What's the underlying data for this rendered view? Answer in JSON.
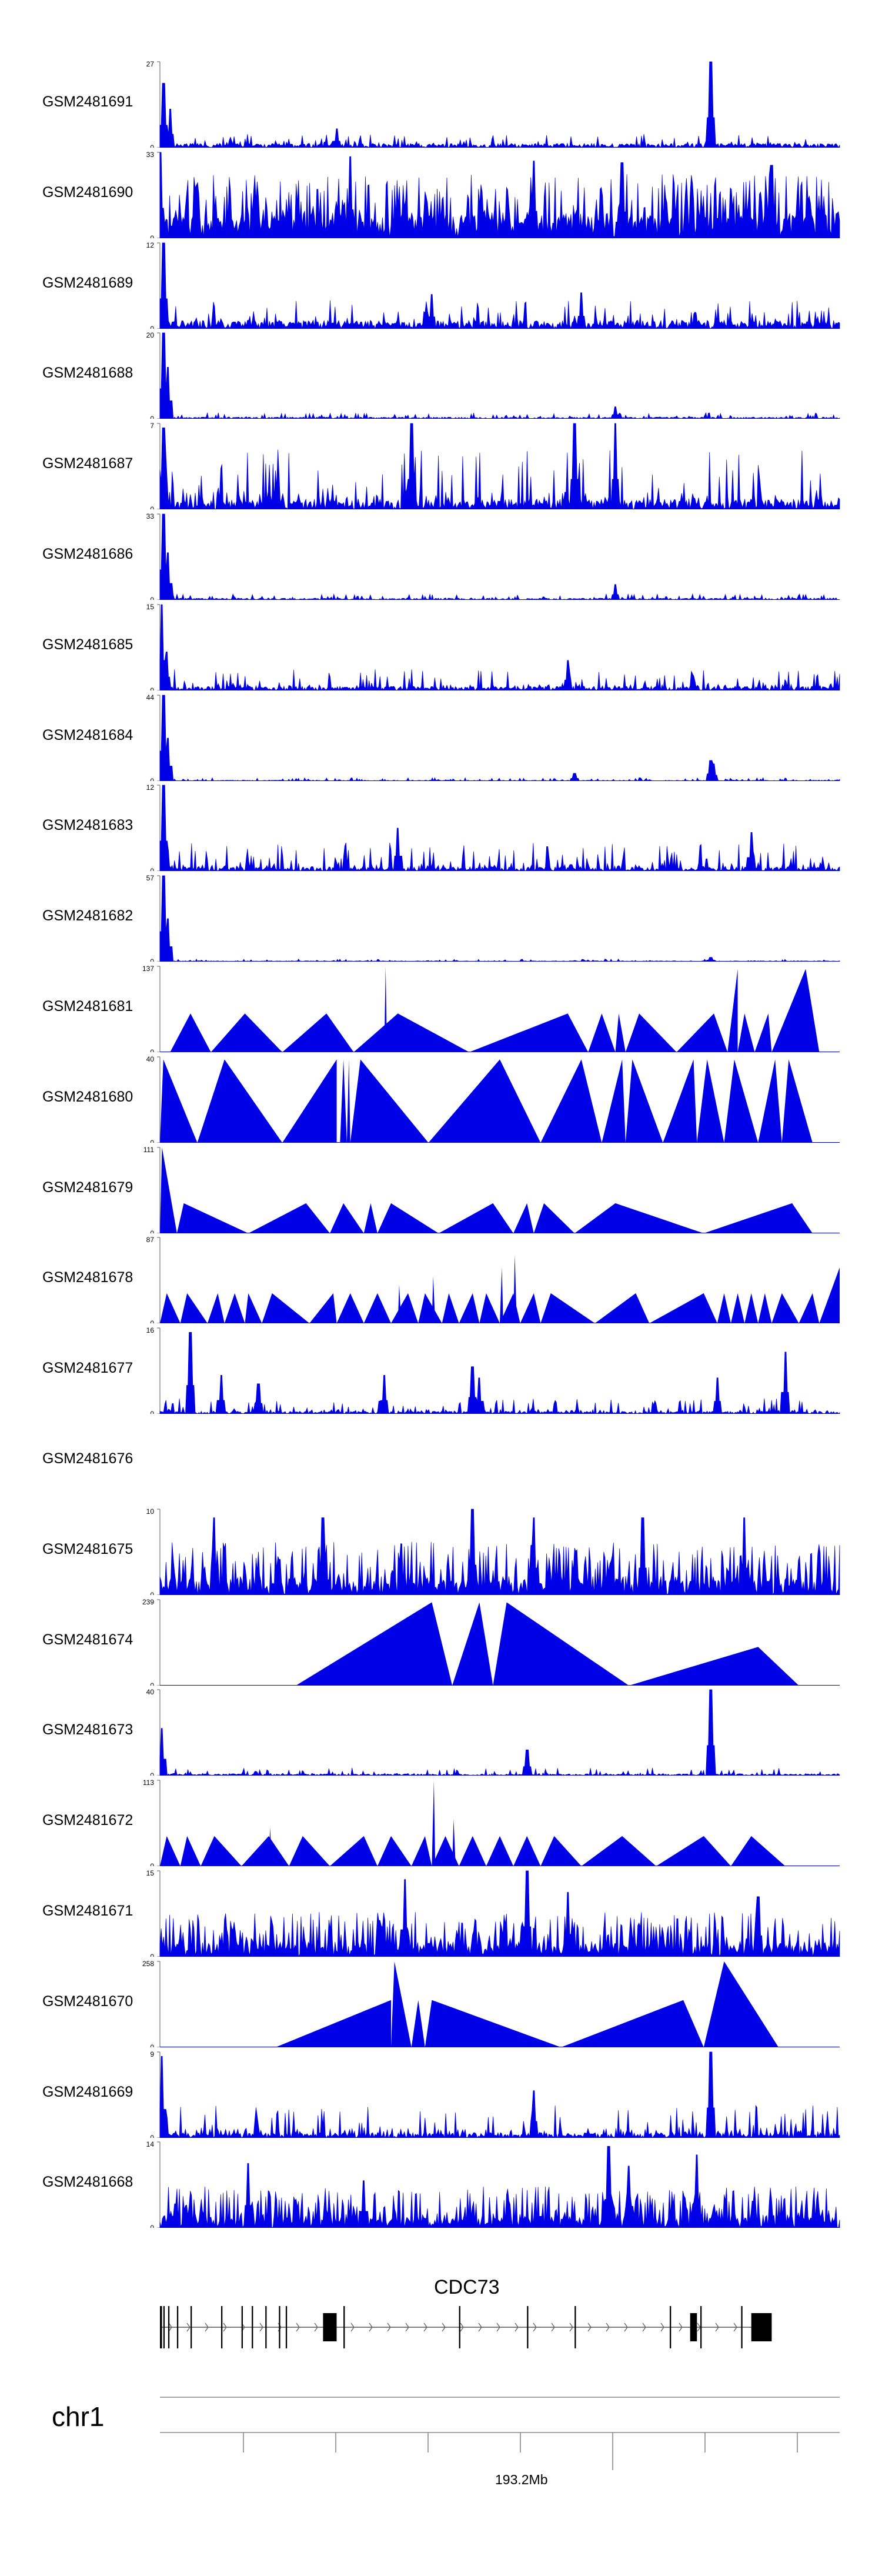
{
  "chart_data": {
    "type": "area",
    "title": "",
    "color": "#0000e6",
    "tracks": [
      {
        "name": "GSM2481691",
        "max": "27",
        "min": "0",
        "ymax": 27,
        "style": "dense",
        "base": 0.05,
        "noise": 0.16,
        "peaks": [
          [
            0.005,
            0.75
          ],
          [
            0.015,
            0.45
          ],
          [
            0.81,
            1.0
          ],
          [
            0.26,
            0.22
          ]
        ]
      },
      {
        "name": "GSM2481690",
        "max": "33",
        "min": "0",
        "ymax": 33,
        "style": "spiky",
        "base": 0.3,
        "noise": 0.75,
        "peaks": [
          [
            0.0,
            1.0
          ],
          [
            0.28,
            0.95
          ],
          [
            0.55,
            0.9
          ],
          [
            0.68,
            0.88
          ],
          [
            0.9,
            0.85
          ]
        ]
      },
      {
        "name": "GSM2481689",
        "max": "12",
        "min": "0",
        "ymax": 12,
        "style": "dense",
        "base": 0.1,
        "noise": 0.33,
        "peaks": [
          [
            0.005,
            1.0
          ],
          [
            0.62,
            0.42
          ],
          [
            0.4,
            0.4
          ]
        ]
      },
      {
        "name": "GSM2481688",
        "max": "20",
        "min": "0",
        "ymax": 20,
        "style": "dense",
        "base": 0.02,
        "noise": 0.07,
        "peaks": [
          [
            0.005,
            1.0
          ],
          [
            0.012,
            0.6
          ],
          [
            0.67,
            0.14
          ]
        ]
      },
      {
        "name": "GSM2481687",
        "max": "7",
        "min": "0",
        "ymax": 7,
        "style": "dense",
        "base": 0.12,
        "noise": 0.7,
        "peaks": [
          [
            0.005,
            0.95
          ],
          [
            0.37,
            1.0
          ],
          [
            0.61,
            1.0
          ],
          [
            0.67,
            1.0
          ]
        ]
      },
      {
        "name": "GSM2481686",
        "max": "33",
        "min": "0",
        "ymax": 33,
        "style": "dense",
        "base": 0.02,
        "noise": 0.07,
        "peaks": [
          [
            0.005,
            1.0
          ],
          [
            0.012,
            0.55
          ],
          [
            0.67,
            0.18
          ]
        ]
      },
      {
        "name": "GSM2481685",
        "max": "15",
        "min": "0",
        "ymax": 15,
        "style": "dense",
        "base": 0.05,
        "noise": 0.25,
        "peaks": [
          [
            0.003,
            1.0
          ],
          [
            0.01,
            0.45
          ],
          [
            0.6,
            0.35
          ]
        ]
      },
      {
        "name": "GSM2481684",
        "max": "44",
        "min": "0",
        "ymax": 44,
        "style": "dense",
        "base": 0.01,
        "noise": 0.04,
        "peaks": [
          [
            0.005,
            1.0
          ],
          [
            0.012,
            0.5
          ],
          [
            0.61,
            0.09
          ],
          [
            0.81,
            0.24
          ],
          [
            0.815,
            0.2
          ]
        ]
      },
      {
        "name": "GSM2481683",
        "max": "12",
        "min": "0",
        "ymax": 12,
        "style": "dense",
        "base": 0.05,
        "noise": 0.33,
        "peaks": [
          [
            0.005,
            1.0
          ],
          [
            0.35,
            0.5
          ],
          [
            0.87,
            0.45
          ]
        ]
      },
      {
        "name": "GSM2481682",
        "max": "57",
        "min": "0",
        "ymax": 57,
        "style": "dense",
        "base": 0.01,
        "noise": 0.03,
        "peaks": [
          [
            0.005,
            1.0
          ],
          [
            0.012,
            0.5
          ],
          [
            0.81,
            0.05
          ]
        ]
      },
      {
        "name": "GSM2481681",
        "max": "137",
        "min": "0",
        "ymax": 137,
        "style": "tri",
        "tris": [
          [
            0.015,
            0.075,
            0.045,
            0.45
          ],
          [
            0.075,
            0.18,
            0.125,
            0.45
          ],
          [
            0.18,
            0.285,
            0.245,
            0.45
          ],
          [
            0.285,
            0.455,
            0.35,
            0.45
          ],
          [
            0.455,
            0.63,
            0.6,
            0.45
          ],
          [
            0.63,
            0.67,
            0.65,
            0.45
          ],
          [
            0.67,
            0.685,
            0.675,
            0.45
          ],
          [
            0.685,
            0.76,
            0.705,
            0.45
          ],
          [
            0.76,
            0.835,
            0.815,
            0.45
          ],
          [
            0.835,
            0.85,
            0.85,
            0.97
          ],
          [
            0.85,
            0.875,
            0.86,
            0.45
          ],
          [
            0.875,
            0.9,
            0.895,
            0.45
          ],
          [
            0.9,
            0.97,
            0.95,
            0.97
          ],
          [
            0.33,
            0.334,
            0.332,
            1.0
          ]
        ]
      },
      {
        "name": "GSM2481680",
        "max": "40",
        "min": "0",
        "ymax": 40,
        "style": "tri",
        "tris": [
          [
            0.0,
            0.055,
            0.005,
            0.97
          ],
          [
            0.055,
            0.18,
            0.095,
            0.97
          ],
          [
            0.18,
            0.26,
            0.26,
            0.97
          ],
          [
            0.265,
            0.275,
            0.27,
            0.97
          ],
          [
            0.275,
            0.28,
            0.278,
            0.97
          ],
          [
            0.28,
            0.395,
            0.295,
            0.97
          ],
          [
            0.395,
            0.56,
            0.5,
            0.97
          ],
          [
            0.56,
            0.65,
            0.62,
            0.97
          ],
          [
            0.65,
            0.685,
            0.68,
            0.97
          ],
          [
            0.685,
            0.74,
            0.695,
            0.97
          ],
          [
            0.74,
            0.79,
            0.785,
            0.97
          ],
          [
            0.79,
            0.83,
            0.805,
            0.97
          ],
          [
            0.83,
            0.88,
            0.845,
            0.97
          ],
          [
            0.88,
            0.915,
            0.905,
            0.97
          ],
          [
            0.915,
            0.96,
            0.925,
            0.97
          ]
        ]
      },
      {
        "name": "GSM2481679",
        "max": "111",
        "min": "0",
        "ymax": 111,
        "style": "tri",
        "tris": [
          [
            0.0,
            0.025,
            0.003,
            1.0
          ],
          [
            0.025,
            0.13,
            0.035,
            0.35
          ],
          [
            0.13,
            0.25,
            0.215,
            0.35
          ],
          [
            0.25,
            0.3,
            0.27,
            0.35
          ],
          [
            0.3,
            0.32,
            0.31,
            0.35
          ],
          [
            0.32,
            0.41,
            0.34,
            0.35
          ],
          [
            0.41,
            0.52,
            0.49,
            0.35
          ],
          [
            0.52,
            0.55,
            0.54,
            0.35
          ],
          [
            0.55,
            0.61,
            0.565,
            0.35
          ],
          [
            0.61,
            0.8,
            0.67,
            0.35
          ],
          [
            0.8,
            0.96,
            0.93,
            0.35
          ]
        ]
      },
      {
        "name": "GSM2481678",
        "max": "87",
        "min": "0",
        "ymax": 87,
        "style": "tri",
        "tris": [
          [
            0.0,
            0.03,
            0.01,
            0.35
          ],
          [
            0.03,
            0.07,
            0.04,
            0.35
          ],
          [
            0.07,
            0.095,
            0.085,
            0.35
          ],
          [
            0.095,
            0.125,
            0.11,
            0.35
          ],
          [
            0.125,
            0.15,
            0.13,
            0.35
          ],
          [
            0.15,
            0.22,
            0.165,
            0.35
          ],
          [
            0.22,
            0.26,
            0.255,
            0.35
          ],
          [
            0.26,
            0.3,
            0.28,
            0.35
          ],
          [
            0.3,
            0.34,
            0.32,
            0.35
          ],
          [
            0.34,
            0.38,
            0.365,
            0.35
          ],
          [
            0.38,
            0.415,
            0.39,
            0.35
          ],
          [
            0.415,
            0.44,
            0.425,
            0.35
          ],
          [
            0.44,
            0.47,
            0.46,
            0.35
          ],
          [
            0.47,
            0.5,
            0.48,
            0.35
          ],
          [
            0.5,
            0.53,
            0.52,
            0.35
          ],
          [
            0.53,
            0.56,
            0.55,
            0.35
          ],
          [
            0.56,
            0.64,
            0.575,
            0.35
          ],
          [
            0.64,
            0.72,
            0.7,
            0.35
          ],
          [
            0.72,
            0.82,
            0.8,
            0.35
          ],
          [
            0.82,
            0.84,
            0.83,
            0.35
          ],
          [
            0.84,
            0.86,
            0.85,
            0.35
          ],
          [
            0.86,
            0.88,
            0.87,
            0.35
          ],
          [
            0.88,
            0.9,
            0.89,
            0.35
          ],
          [
            0.9,
            0.94,
            0.915,
            0.35
          ],
          [
            0.94,
            0.97,
            0.96,
            0.35
          ],
          [
            0.97,
            1.0,
            1.0,
            0.65
          ],
          [
            0.35,
            0.355,
            0.352,
            0.45
          ],
          [
            0.4,
            0.405,
            0.402,
            0.55
          ],
          [
            0.5,
            0.505,
            0.503,
            0.65
          ],
          [
            0.52,
            0.525,
            0.522,
            0.8
          ]
        ]
      },
      {
        "name": "GSM2481677",
        "max": "16",
        "min": "0",
        "ymax": 16,
        "style": "dense",
        "base": 0.03,
        "noise": 0.18,
        "peaks": [
          [
            0.045,
            0.95
          ],
          [
            0.09,
            0.45
          ],
          [
            0.145,
            0.35
          ],
          [
            0.33,
            0.45
          ],
          [
            0.46,
            0.55
          ],
          [
            0.47,
            0.42
          ],
          [
            0.82,
            0.42
          ],
          [
            0.92,
            0.72
          ]
        ]
      },
      {
        "name": "GSM2481676",
        "max": "",
        "min": "",
        "ymax": 0,
        "style": "empty"
      },
      {
        "name": "GSM2481675",
        "max": "10",
        "min": "0",
        "ymax": 10,
        "style": "spiky",
        "base": 0.18,
        "noise": 0.62,
        "peaks": [
          [
            0.08,
            0.9
          ],
          [
            0.24,
            0.9
          ],
          [
            0.46,
            1.0
          ],
          [
            0.55,
            0.9
          ],
          [
            0.71,
            0.9
          ],
          [
            0.86,
            0.9
          ]
        ]
      },
      {
        "name": "GSM2481674",
        "max": "239",
        "min": "0",
        "ymax": 239,
        "style": "tri",
        "tris": [
          [
            0.2,
            0.43,
            0.4,
            0.97
          ],
          [
            0.43,
            0.49,
            0.47,
            0.97
          ],
          [
            0.49,
            0.69,
            0.51,
            0.97
          ],
          [
            0.69,
            0.94,
            0.88,
            0.45
          ]
        ]
      },
      {
        "name": "GSM2481673",
        "max": "40",
        "min": "0",
        "ymax": 40,
        "style": "dense",
        "base": 0.02,
        "noise": 0.09,
        "peaks": [
          [
            0.003,
            0.55
          ],
          [
            0.81,
            1.0
          ],
          [
            0.54,
            0.3
          ]
        ]
      },
      {
        "name": "GSM2481672",
        "max": "113",
        "min": "0",
        "ymax": 113,
        "style": "tri",
        "tris": [
          [
            0.0,
            0.03,
            0.01,
            0.35
          ],
          [
            0.03,
            0.06,
            0.04,
            0.35
          ],
          [
            0.06,
            0.12,
            0.08,
            0.35
          ],
          [
            0.12,
            0.19,
            0.16,
            0.35
          ],
          [
            0.19,
            0.25,
            0.21,
            0.35
          ],
          [
            0.25,
            0.32,
            0.3,
            0.35
          ],
          [
            0.32,
            0.37,
            0.34,
            0.35
          ],
          [
            0.37,
            0.4,
            0.39,
            0.35
          ],
          [
            0.4,
            0.44,
            0.42,
            0.35
          ],
          [
            0.44,
            0.48,
            0.46,
            0.35
          ],
          [
            0.48,
            0.52,
            0.5,
            0.35
          ],
          [
            0.52,
            0.56,
            0.54,
            0.35
          ],
          [
            0.56,
            0.62,
            0.58,
            0.35
          ],
          [
            0.62,
            0.73,
            0.68,
            0.35
          ],
          [
            0.73,
            0.84,
            0.8,
            0.35
          ],
          [
            0.84,
            0.92,
            0.87,
            0.35
          ],
          [
            0.4,
            0.405,
            0.403,
            1.0
          ],
          [
            0.16,
            0.165,
            0.162,
            0.45
          ],
          [
            0.43,
            0.435,
            0.432,
            0.55
          ]
        ]
      },
      {
        "name": "GSM2481671",
        "max": "15",
        "min": "0",
        "ymax": 15,
        "style": "spiky",
        "base": 0.15,
        "noise": 0.52,
        "peaks": [
          [
            0.36,
            0.9
          ],
          [
            0.54,
            1.0
          ],
          [
            0.6,
            0.75
          ],
          [
            0.88,
            0.7
          ]
        ]
      },
      {
        "name": "GSM2481670",
        "max": "258",
        "min": "0",
        "ymax": 258,
        "style": "tri",
        "tris": [
          [
            0.17,
            0.34,
            0.34,
            0.55
          ],
          [
            0.34,
            0.37,
            0.345,
            1.0
          ],
          [
            0.37,
            0.39,
            0.38,
            0.55
          ],
          [
            0.39,
            0.59,
            0.4,
            0.55
          ],
          [
            0.59,
            0.8,
            0.77,
            0.55
          ],
          [
            0.8,
            0.91,
            0.83,
            1.0
          ]
        ]
      },
      {
        "name": "GSM2481669",
        "max": "9",
        "min": "0",
        "ymax": 9,
        "style": "dense",
        "base": 0.06,
        "noise": 0.38,
        "peaks": [
          [
            0.003,
            0.95
          ],
          [
            0.81,
            1.0
          ],
          [
            0.55,
            0.55
          ]
        ]
      },
      {
        "name": "GSM2481668",
        "max": "14",
        "min": "0",
        "ymax": 14,
        "style": "spiky",
        "base": 0.12,
        "noise": 0.48,
        "peaks": [
          [
            0.13,
            0.75
          ],
          [
            0.3,
            0.55
          ],
          [
            0.66,
            0.95
          ],
          [
            0.69,
            0.72
          ],
          [
            0.79,
            0.85
          ]
        ]
      }
    ],
    "gene": {
      "name": "CDC73",
      "exons": [
        [
          0.0,
          0.003
        ],
        [
          0.005,
          0.007
        ],
        [
          0.012,
          0.014
        ],
        [
          0.025,
          0.027
        ],
        [
          0.045,
          0.047
        ],
        [
          0.09,
          0.092
        ],
        [
          0.12,
          0.122
        ],
        [
          0.135,
          0.137
        ],
        [
          0.155,
          0.157
        ],
        [
          0.175,
          0.177
        ],
        [
          0.185,
          0.187
        ],
        [
          0.24,
          0.26
        ],
        [
          0.27,
          0.272
        ],
        [
          0.44,
          0.442
        ],
        [
          0.54,
          0.542
        ],
        [
          0.61,
          0.612
        ],
        [
          0.75,
          0.752
        ],
        [
          0.78,
          0.79
        ],
        [
          0.795,
          0.797
        ],
        [
          0.855,
          0.857
        ],
        [
          0.87,
          0.9
        ]
      ]
    },
    "axis": {
      "chromosome": "chr1",
      "tick_label": "193.2Mb",
      "ticks": 8,
      "labeled_tick_index": 4
    }
  }
}
